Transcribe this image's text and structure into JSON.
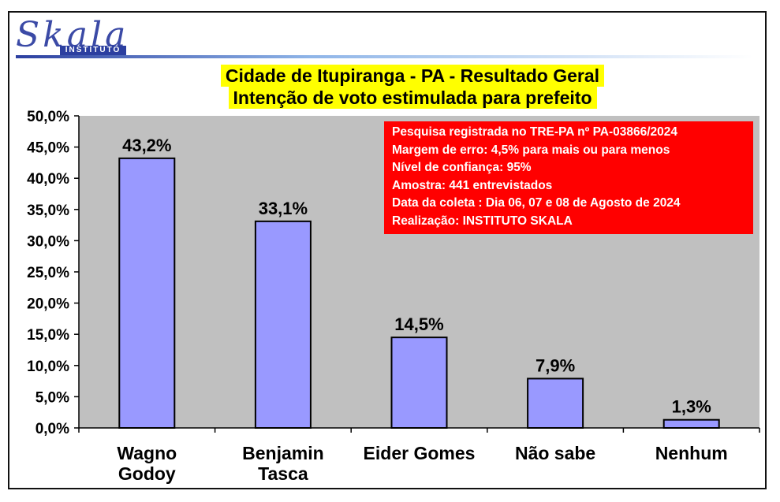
{
  "logo": {
    "word": "Skala",
    "subtitle": "INSTITUTO"
  },
  "chart_data": {
    "type": "bar",
    "title_line1": "Cidade de Itupiranga - PA - Resultado Geral",
    "title_line2": "Intenção de voto estimulada para prefeito",
    "categories": [
      [
        "Wagno",
        "Godoy"
      ],
      [
        "Benjamin",
        "Tasca"
      ],
      [
        "Eider Gomes"
      ],
      [
        "Não sabe"
      ],
      [
        "Nenhum"
      ]
    ],
    "values": [
      43.2,
      33.1,
      14.5,
      7.9,
      1.3
    ],
    "value_labels": [
      "43,2%",
      "33,1%",
      "14,5%",
      "7,9%",
      "1,3%"
    ],
    "yticks": [
      "0,0%",
      "5,0%",
      "10,0%",
      "15,0%",
      "20,0%",
      "25,0%",
      "30,0%",
      "35,0%",
      "40,0%",
      "45,0%",
      "50,0%"
    ],
    "ylim": [
      0,
      50
    ],
    "grid": false,
    "colors": {
      "bar": "#9999ff",
      "plot_background": "#c0c0c0",
      "title_highlight": "#ffff00",
      "info_box": "#ff0000"
    }
  },
  "info_box": {
    "lines": [
      "Pesquisa registrada no TRE-PA nº PA-03866/2024",
      "Margem de erro: 4,5% para mais ou para menos",
      "Nível de confiança: 95%",
      "Amostra: 441 entrevistados",
      "Data da coleta : Dia 06, 07 e 08 de Agosto de 2024",
      "Realização: INSTITUTO SKALA"
    ]
  }
}
